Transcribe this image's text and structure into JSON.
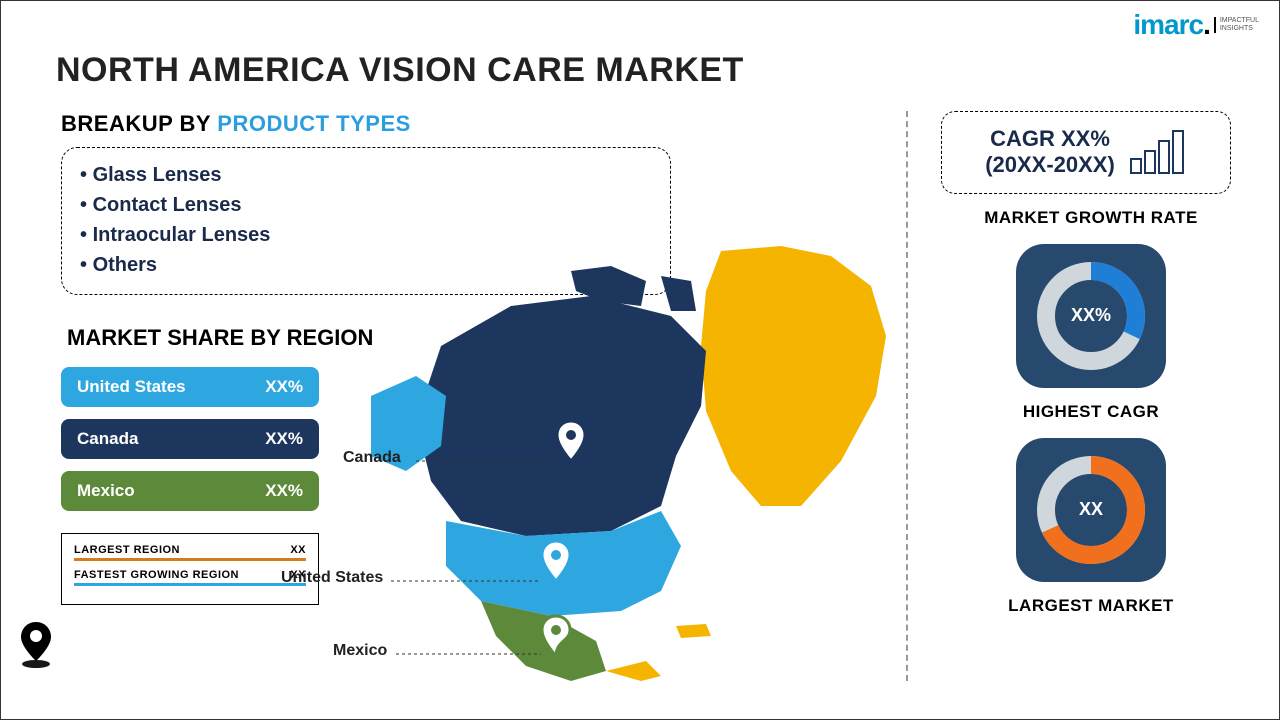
{
  "logo": {
    "brand": "imarc",
    "tagline_l1": "IMPACTFUL",
    "tagline_l2": "INSIGHTS"
  },
  "title": "NORTH AMERICA VISION CARE MARKET",
  "breakup": {
    "label_pre": "BREAKUP BY ",
    "label_accent": "PRODUCT TYPES",
    "items": [
      "Glass Lenses",
      "Contact Lenses",
      "Intraocular Lenses",
      "Others"
    ]
  },
  "share": {
    "heading": "MARKET SHARE BY REGION",
    "rows": [
      {
        "name": "United States",
        "value": "XX%",
        "bg": "#2ea7e0"
      },
      {
        "name": "Canada",
        "value": "XX%",
        "bg": "#1d365e"
      },
      {
        "name": "Mexico",
        "value": "XX%",
        "bg": "#5d8a3a"
      }
    ]
  },
  "stats": {
    "largest": {
      "label": "LARGEST REGION",
      "value": "XX",
      "bar": "#d97b1a"
    },
    "fastest": {
      "label": "FASTEST GROWING REGION",
      "value": "XX",
      "bar": "#2ea7e0"
    }
  },
  "map": {
    "colors": {
      "canada": "#1d365e",
      "usa": "#2ea7e0",
      "mexico": "#5d8a3a",
      "greenland": "#f4b400",
      "other": "#f4b400"
    },
    "labels": {
      "canada": "Canada",
      "usa": "United States",
      "mexico": "Mexico"
    }
  },
  "cagr": {
    "text_l1": "CAGR XX%",
    "text_l2": "(20XX-20XX)",
    "label": "MARKET GROWTH RATE"
  },
  "highest_cagr": {
    "label": "HIGHEST CAGR",
    "center": "XX%",
    "card_bg": "#27496d",
    "ring_fg": "#1f7ed6",
    "ring_bg": "#cfd6dc",
    "percent": 32
  },
  "largest_market": {
    "label": "LARGEST MARKET",
    "center": "XX",
    "card_bg": "#27496d",
    "ring_fg": "#f0701e",
    "ring_bg": "#cfd6dc",
    "percent": 68
  }
}
